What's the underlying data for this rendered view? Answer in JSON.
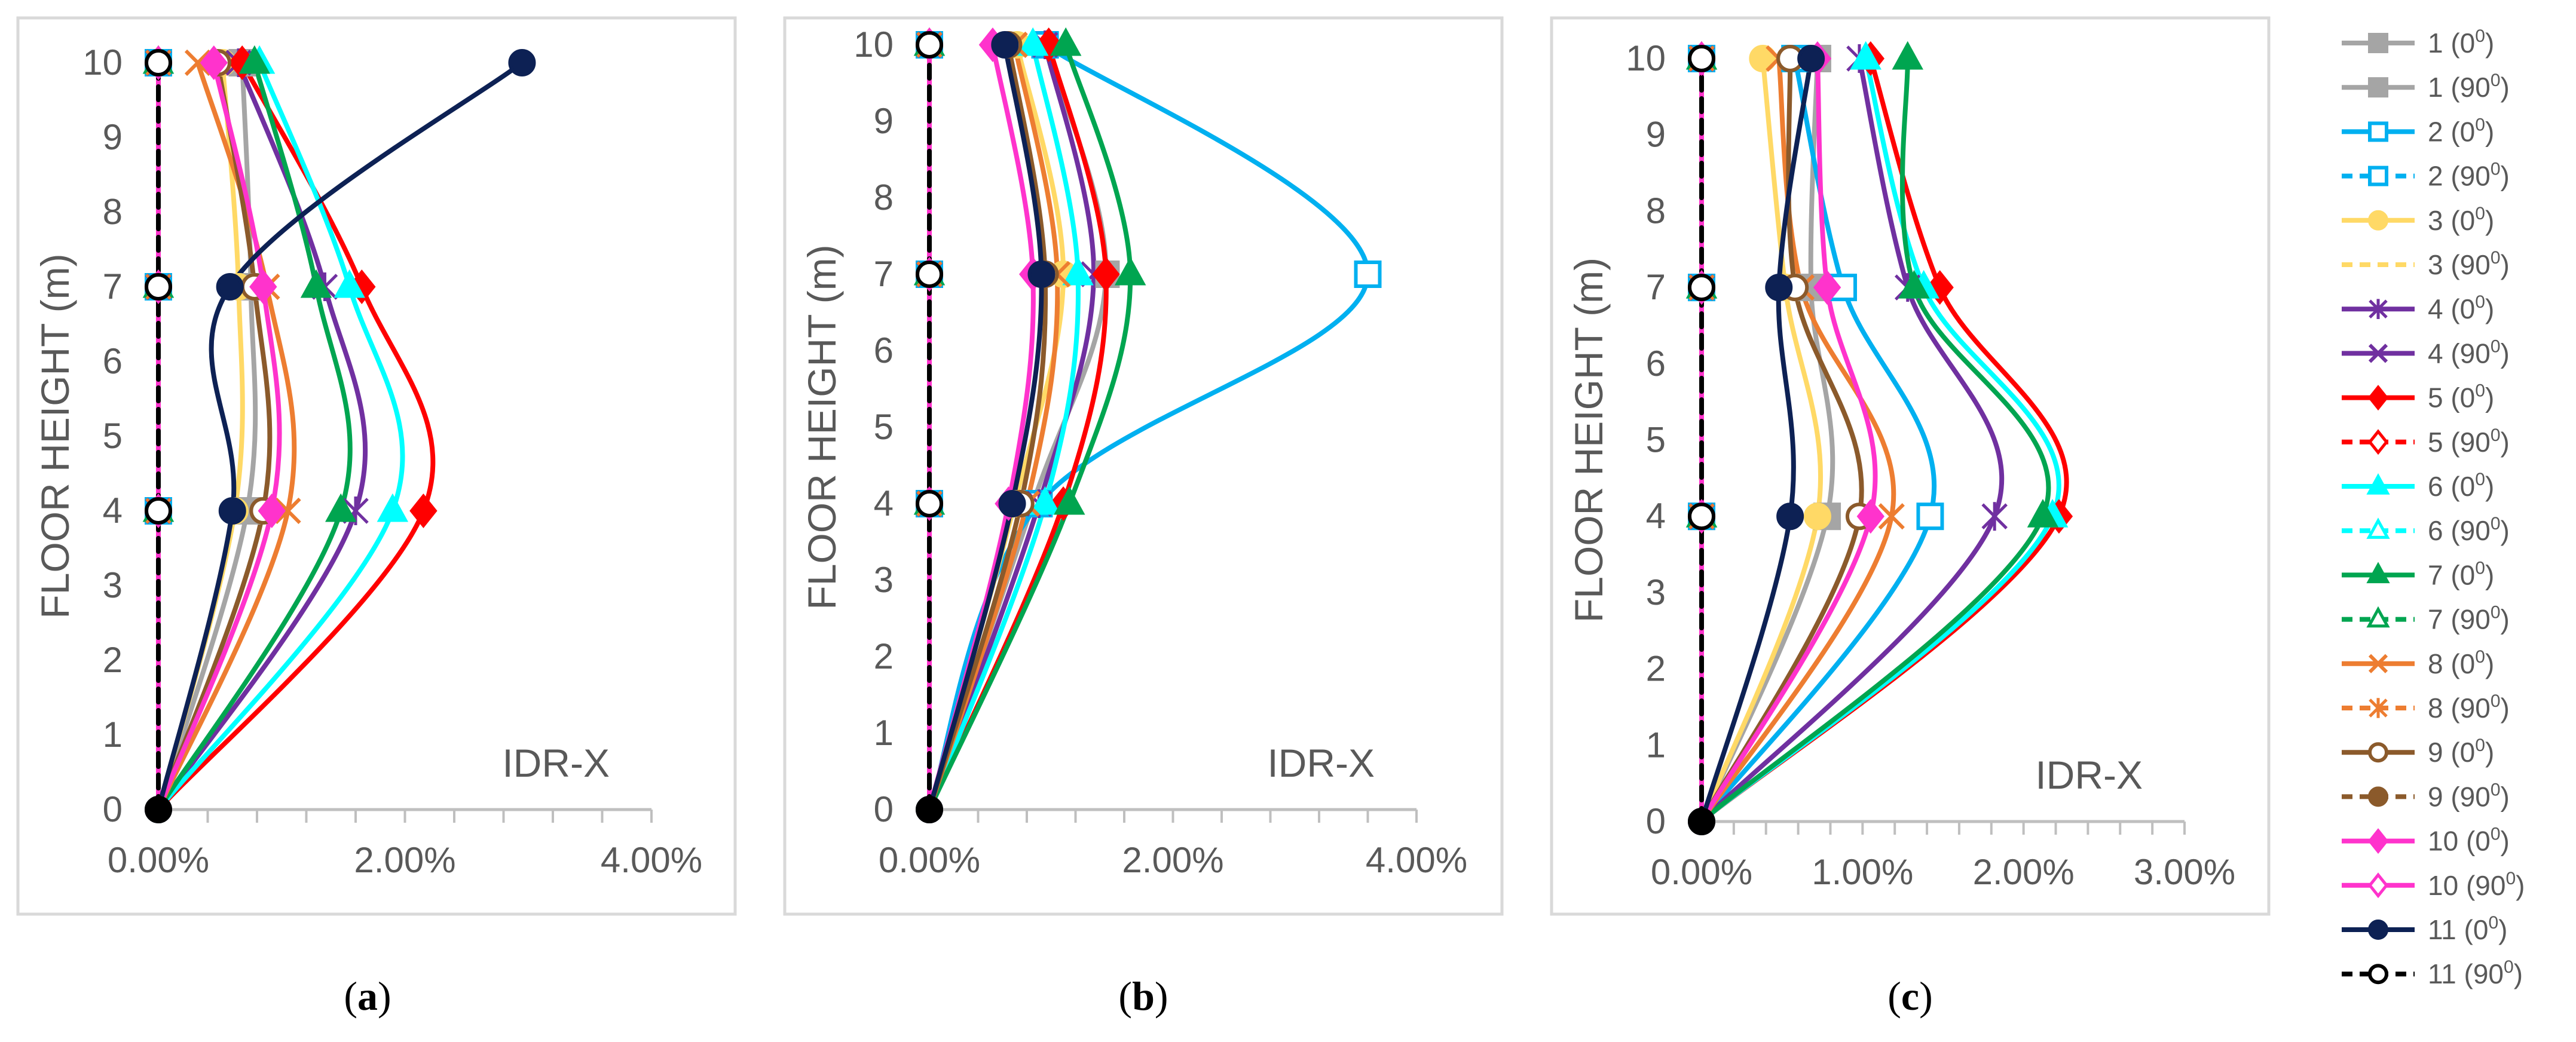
{
  "figure": {
    "captions": [
      "a",
      "b",
      "c"
    ],
    "legend": [
      {
        "label": "1 (0",
        "sup": "0",
        "close": ")",
        "color": "#A5A5A5",
        "dash": false,
        "marker": "square",
        "filled": true
      },
      {
        "label": "1 (90",
        "sup": "0",
        "close": ")",
        "color": "#A5A5A5",
        "dash": false,
        "marker": "square",
        "filled": true
      },
      {
        "label": "2 (0",
        "sup": "0",
        "close": ")",
        "color": "#00B0F0",
        "dash": false,
        "marker": "square",
        "filled": false
      },
      {
        "label": "2 (90",
        "sup": "0",
        "close": ")",
        "color": "#00B0F0",
        "dash": true,
        "marker": "square",
        "filled": false
      },
      {
        "label": "3 (0",
        "sup": "0",
        "close": ")",
        "color": "#FFD966",
        "dash": false,
        "marker": "circle",
        "filled": true
      },
      {
        "label": "3 (90",
        "sup": "0",
        "close": ")",
        "color": "#FFD966",
        "dash": true,
        "marker": "none",
        "filled": false
      },
      {
        "label": "4 (0",
        "sup": "0",
        "close": ")",
        "color": "#7030A0",
        "dash": false,
        "marker": "star",
        "filled": true
      },
      {
        "label": "4 (90",
        "sup": "0",
        "close": ")",
        "color": "#7030A0",
        "dash": false,
        "marker": "x",
        "filled": true
      },
      {
        "label": "5 (0",
        "sup": "0",
        "close": ")",
        "color": "#FF0000",
        "dash": false,
        "marker": "diamond",
        "filled": true
      },
      {
        "label": "5 (90",
        "sup": "0",
        "close": ")",
        "color": "#FF0000",
        "dash": true,
        "marker": "diamond",
        "filled": false
      },
      {
        "label": "6 (0",
        "sup": "0",
        "close": ")",
        "color": "#00FFFF",
        "dash": false,
        "marker": "triangle",
        "filled": true
      },
      {
        "label": "6 (90",
        "sup": "0",
        "close": ")",
        "color": "#00FFFF",
        "dash": true,
        "marker": "triangle",
        "filled": false
      },
      {
        "label": "7 (0",
        "sup": "0",
        "close": ")",
        "color": "#00A550",
        "dash": false,
        "marker": "triangle",
        "filled": true
      },
      {
        "label": "7 (90",
        "sup": "0",
        "close": ")",
        "color": "#00A550",
        "dash": true,
        "marker": "triangle",
        "filled": false
      },
      {
        "label": "8 (0",
        "sup": "0",
        "close": ")",
        "color": "#ED7D31",
        "dash": false,
        "marker": "x",
        "filled": true
      },
      {
        "label": "8 (90",
        "sup": "0",
        "close": ")",
        "color": "#ED7D31",
        "dash": true,
        "marker": "star",
        "filled": true
      },
      {
        "label": "9 (0",
        "sup": "0",
        "close": ")",
        "color": "#8B5A2B",
        "dash": false,
        "marker": "circle",
        "filled": false
      },
      {
        "label": "9 (90",
        "sup": "0",
        "close": ")",
        "color": "#8B5A2B",
        "dash": true,
        "marker": "circle",
        "filled": true
      },
      {
        "label": "10 (0",
        "sup": "0",
        "close": ")",
        "color": "#FF33CC",
        "dash": false,
        "marker": "diamond",
        "filled": true
      },
      {
        "label": "10 (90",
        "sup": "0",
        "close": ")",
        "color": "#FF33CC",
        "dash": false,
        "marker": "diamond",
        "filled": false
      },
      {
        "label": "11 (0",
        "sup": "0",
        "close": ")",
        "color": "#0D2154",
        "dash": false,
        "marker": "circle",
        "filled": true
      },
      {
        "label": "11 (90",
        "sup": "0",
        "close": ")",
        "color": "#000000",
        "dash": true,
        "marker": "circle",
        "filled": false
      }
    ]
  },
  "chart_data": [
    {
      "type": "line",
      "panel": "a",
      "xlabel": "",
      "ylabel": "FLOOR HEIGHT (m)",
      "annotation": "IDR-X",
      "xlim": [
        0,
        0.04
      ],
      "ylim": [
        0,
        10
      ],
      "xticks": [
        0,
        0.02,
        0.04
      ],
      "xtick_labels": [
        "0.00%",
        "2.00%",
        "4.00%"
      ],
      "yticks": [
        0,
        1,
        2,
        3,
        4,
        5,
        6,
        7,
        8,
        9,
        10
      ],
      "y": [
        0,
        4,
        7,
        10
      ],
      "series": [
        {
          "name": "1 (0)",
          "values": [
            0,
            0.0072,
            0.0075,
            0.0068
          ]
        },
        {
          "name": "1 (90)",
          "values": [
            0,
            0,
            0,
            0
          ]
        },
        {
          "name": "2 (0)",
          "values": [
            0,
            0,
            0,
            0
          ]
        },
        {
          "name": "2 (90)",
          "values": [
            0,
            0,
            0,
            0
          ]
        },
        {
          "name": "3 (0)",
          "values": [
            0,
            0.0062,
            0.0065,
            0.0052
          ]
        },
        {
          "name": "3 (90)",
          "values": [
            0,
            0,
            0,
            0
          ]
        },
        {
          "name": "4 (0)",
          "values": [
            0,
            0.016,
            0.0135,
            0.0065
          ]
        },
        {
          "name": "4 (90)",
          "values": [
            0,
            0,
            0,
            0
          ]
        },
        {
          "name": "5 (0)",
          "values": [
            0,
            0.0215,
            0.0165,
            0.0068
          ]
        },
        {
          "name": "5 (90)",
          "values": [
            0,
            0,
            0,
            0
          ]
        },
        {
          "name": "6 (0)",
          "values": [
            0,
            0.019,
            0.0155,
            0.0082
          ]
        },
        {
          "name": "6 (90)",
          "values": [
            0,
            0,
            0,
            0
          ]
        },
        {
          "name": "7 (0)",
          "values": [
            0,
            0.0148,
            0.0128,
            0.0078
          ]
        },
        {
          "name": "7 (90)",
          "values": [
            0,
            0,
            0,
            0
          ]
        },
        {
          "name": "8 (0)",
          "values": [
            0,
            0.0105,
            0.0088,
            0.0032
          ]
        },
        {
          "name": "8 (90)",
          "values": [
            0,
            0,
            0,
            0
          ]
        },
        {
          "name": "9 (0)",
          "values": [
            0,
            0.0085,
            0.0078,
            0.0048
          ]
        },
        {
          "name": "9 (90)",
          "values": [
            0,
            0,
            0,
            0
          ]
        },
        {
          "name": "10 (0)",
          "values": [
            0,
            0.0092,
            0.0085,
            0.0045
          ]
        },
        {
          "name": "10 (90)",
          "values": [
            0,
            0,
            0,
            0
          ]
        },
        {
          "name": "11 (0)",
          "values": [
            0,
            0.006,
            0.0058,
            0.0295
          ]
        },
        {
          "name": "11 (90)",
          "values": [
            0,
            0,
            0,
            0
          ]
        }
      ]
    },
    {
      "type": "line",
      "panel": "b",
      "xlabel": "",
      "ylabel": "FLOOR HEIGHT (m)",
      "annotation": "IDR-X",
      "xlim": [
        0,
        0.04
      ],
      "ylim": [
        0,
        10
      ],
      "xticks": [
        0,
        0.02,
        0.04
      ],
      "xtick_labels": [
        "0.00%",
        "2.00%",
        "4.00%"
      ],
      "yticks": [
        0,
        1,
        2,
        3,
        4,
        5,
        6,
        7,
        8,
        9,
        10
      ],
      "y": [
        0,
        4,
        7,
        10
      ],
      "series": [
        {
          "name": "1 (0)",
          "values": [
            0,
            0.0085,
            0.0145,
            0.0095
          ]
        },
        {
          "name": "1 (90)",
          "values": [
            0,
            0,
            0,
            0
          ]
        },
        {
          "name": "2 (0)",
          "values": [
            0,
            0.009,
            0.036,
            0.0095
          ]
        },
        {
          "name": "2 (90)",
          "values": [
            0,
            0,
            0,
            0
          ]
        },
        {
          "name": "3 (0)",
          "values": [
            0,
            0.007,
            0.011,
            0.0072
          ]
        },
        {
          "name": "3 (90)",
          "values": [
            0,
            0,
            0,
            0
          ]
        },
        {
          "name": "4 (0)",
          "values": [
            0,
            0.009,
            0.0135,
            0.0095
          ]
        },
        {
          "name": "4 (90)",
          "values": [
            0,
            0,
            0,
            0
          ]
        },
        {
          "name": "5 (0)",
          "values": [
            0,
            0.011,
            0.0145,
            0.0098
          ]
        },
        {
          "name": "5 (90)",
          "values": [
            0,
            0,
            0,
            0
          ]
        },
        {
          "name": "6 (0)",
          "values": [
            0,
            0.0095,
            0.0122,
            0.0085
          ]
        },
        {
          "name": "6 (90)",
          "values": [
            0,
            0,
            0,
            0
          ]
        },
        {
          "name": "7 (0)",
          "values": [
            0,
            0.0115,
            0.0165,
            0.0112
          ]
        },
        {
          "name": "7 (90)",
          "values": [
            0,
            0,
            0,
            0
          ]
        },
        {
          "name": "8 (0)",
          "values": [
            0,
            0.008,
            0.0105,
            0.007
          ]
        },
        {
          "name": "8 (90)",
          "values": [
            0,
            0,
            0,
            0
          ]
        },
        {
          "name": "9 (0)",
          "values": [
            0,
            0.0075,
            0.0095,
            0.0065
          ]
        },
        {
          "name": "9 (90)",
          "values": [
            0,
            0,
            0,
            0
          ]
        },
        {
          "name": "10 (0)",
          "values": [
            0,
            0.0065,
            0.0085,
            0.0052
          ]
        },
        {
          "name": "10 (90)",
          "values": [
            0,
            0,
            0,
            0
          ]
        },
        {
          "name": "11 (0)",
          "values": [
            0,
            0.0068,
            0.0092,
            0.0062
          ]
        },
        {
          "name": "11 (90)",
          "values": [
            0,
            0,
            0,
            0
          ]
        }
      ]
    },
    {
      "type": "line",
      "panel": "c",
      "xlabel": "",
      "ylabel": "FLOOR HEIGHT (m)",
      "annotation": "IDR-X",
      "xlim": [
        0,
        0.03
      ],
      "ylim": [
        0,
        10
      ],
      "xticks": [
        0,
        0.01,
        0.02,
        0.03
      ],
      "xtick_labels": [
        "0.00%",
        "1.00%",
        "2.00%",
        "3.00%"
      ],
      "yticks": [
        0,
        1,
        2,
        3,
        4,
        5,
        6,
        7,
        8,
        9,
        10
      ],
      "y": [
        0,
        4,
        7,
        10
      ],
      "series": [
        {
          "name": "1 (0)",
          "values": [
            0,
            0.0078,
            0.0068,
            0.0072
          ]
        },
        {
          "name": "1 (90)",
          "values": [
            0,
            0,
            0,
            0
          ]
        },
        {
          "name": "2 (0)",
          "values": [
            0,
            0.0142,
            0.0088,
            0.0058
          ]
        },
        {
          "name": "2 (90)",
          "values": [
            0,
            0,
            0,
            0
          ]
        },
        {
          "name": "3 (0)",
          "values": [
            0,
            0.0072,
            0.0052,
            0.0038
          ]
        },
        {
          "name": "3 (90)",
          "values": [
            0,
            0,
            0,
            0
          ]
        },
        {
          "name": "4 (0)",
          "values": [
            0,
            0.0182,
            0.0128,
            0.0098
          ]
        },
        {
          "name": "4 (90)",
          "values": [
            0,
            0,
            0,
            0
          ]
        },
        {
          "name": "5 (0)",
          "values": [
            0,
            0.0222,
            0.0148,
            0.0105
          ]
        },
        {
          "name": "5 (90)",
          "values": [
            0,
            0,
            0,
            0
          ]
        },
        {
          "name": "6 (0)",
          "values": [
            0,
            0.0218,
            0.0138,
            0.0102
          ]
        },
        {
          "name": "6 (90)",
          "values": [
            0,
            0,
            0,
            0
          ]
        },
        {
          "name": "7 (0)",
          "values": [
            0,
            0.0212,
            0.0132,
            0.0128
          ]
        },
        {
          "name": "7 (90)",
          "values": [
            0,
            0,
            0,
            0
          ]
        },
        {
          "name": "8 (0)",
          "values": [
            0,
            0.0118,
            0.0062,
            0.0048
          ]
        },
        {
          "name": "8 (90)",
          "values": [
            0,
            0,
            0,
            0
          ]
        },
        {
          "name": "9 (0)",
          "values": [
            0,
            0.0098,
            0.0058,
            0.0055
          ]
        },
        {
          "name": "9 (90)",
          "values": [
            0,
            0,
            0,
            0
          ]
        },
        {
          "name": "10 (0)",
          "values": [
            0,
            0.0105,
            0.0078,
            0.0072
          ]
        },
        {
          "name": "10 (90)",
          "values": [
            0,
            0,
            0,
            0
          ]
        },
        {
          "name": "11 (0)",
          "values": [
            0,
            0.0055,
            0.0048,
            0.0068
          ]
        },
        {
          "name": "11 (90)",
          "values": [
            0,
            0,
            0,
            0
          ]
        }
      ]
    }
  ]
}
